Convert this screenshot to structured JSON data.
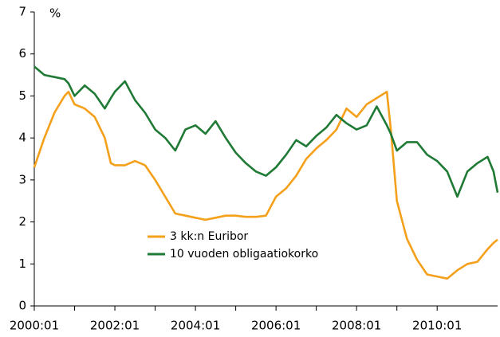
{
  "chart_data": {
    "type": "line",
    "y_label": "%",
    "x": [
      2000,
      2000.25,
      2000.5,
      2000.75,
      2000.85,
      2001,
      2001.25,
      2001.5,
      2001.75,
      2001.9,
      2002,
      2002.25,
      2002.5,
      2002.75,
      2003,
      2003.25,
      2003.5,
      2003.75,
      2004,
      2004.25,
      2004.5,
      2004.75,
      2005,
      2005.25,
      2005.5,
      2005.75,
      2006,
      2006.25,
      2006.5,
      2006.75,
      2007,
      2007.25,
      2007.5,
      2007.75,
      2008,
      2008.25,
      2008.5,
      2008.75,
      2008.85,
      2009,
      2009.25,
      2009.5,
      2009.75,
      2010,
      2010.25,
      2010.5,
      2010.75,
      2011,
      2011.25,
      2011.4,
      2011.5
    ],
    "series": [
      {
        "name": "3 kk:n Euribor",
        "color": "#f5a01a",
        "values": [
          3.3,
          4.0,
          4.6,
          5.0,
          5.1,
          4.8,
          4.7,
          4.5,
          4.0,
          3.4,
          3.35,
          3.35,
          3.45,
          3.35,
          3.0,
          2.6,
          2.2,
          2.15,
          2.1,
          2.05,
          2.1,
          2.15,
          2.15,
          2.12,
          2.12,
          2.15,
          2.6,
          2.8,
          3.1,
          3.5,
          3.75,
          3.95,
          4.2,
          4.7,
          4.5,
          4.8,
          4.95,
          5.1,
          4.2,
          2.5,
          1.6,
          1.1,
          0.75,
          0.7,
          0.65,
          0.85,
          1.0,
          1.05,
          1.35,
          1.5,
          1.58
        ]
      },
      {
        "name": "10 vuoden obligaatiokorko",
        "color": "#1f7a35",
        "values": [
          5.7,
          5.5,
          5.45,
          5.4,
          5.3,
          5.0,
          5.25,
          5.05,
          4.7,
          4.95,
          5.1,
          5.35,
          4.9,
          4.6,
          4.2,
          4.0,
          3.7,
          4.2,
          4.3,
          4.1,
          4.4,
          4.0,
          3.65,
          3.4,
          3.2,
          3.1,
          3.3,
          3.6,
          3.95,
          3.8,
          4.05,
          4.25,
          4.55,
          4.35,
          4.2,
          4.3,
          4.75,
          4.3,
          4.1,
          3.7,
          3.9,
          3.9,
          3.6,
          3.45,
          3.2,
          2.6,
          3.2,
          3.4,
          3.55,
          3.2,
          2.7
        ]
      }
    ],
    "xlim": [
      2000,
      2011.5
    ],
    "xticks": [
      {
        "value": 2000,
        "label": "2000:01"
      },
      {
        "value": 2002,
        "label": "2002:01"
      },
      {
        "value": 2004,
        "label": "2004:01"
      },
      {
        "value": 2006,
        "label": "2006:01"
      },
      {
        "value": 2008,
        "label": "2008:01"
      },
      {
        "value": 2010,
        "label": "2010:01"
      }
    ],
    "ylim": [
      0,
      7
    ],
    "yticks": [
      0,
      1,
      2,
      3,
      4,
      5,
      6,
      7
    ],
    "grid": false,
    "legend": "lower-left"
  }
}
